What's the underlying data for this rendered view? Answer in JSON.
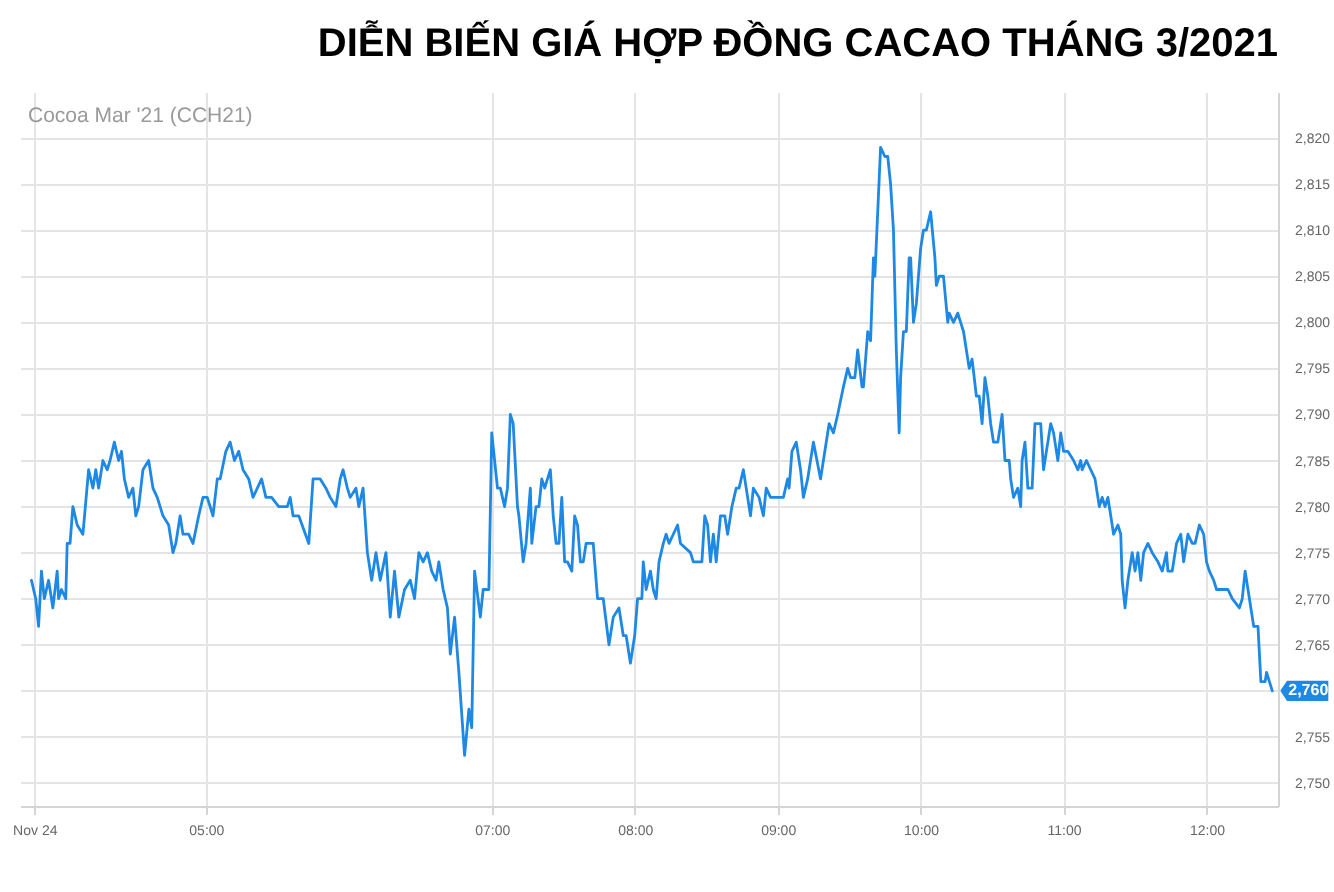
{
  "chart_data": {
    "type": "line",
    "title": "DIỄN BIẾN GIÁ HỢP ĐỒNG CACAO THÁNG 3/2021",
    "subtitle": "Cocoa Mar '21 (CCH21)",
    "color": "#1e88e5",
    "x": [
      3.78,
      3.81,
      3.83,
      3.85,
      3.87,
      3.9,
      3.93,
      3.96,
      3.97,
      3.99,
      4.02,
      4.03,
      4.05,
      4.07,
      4.1,
      4.14,
      4.18,
      4.21,
      4.23,
      4.25,
      4.28,
      4.31,
      4.33,
      4.36,
      4.39,
      4.41,
      4.43,
      4.46,
      4.49,
      4.51,
      4.53,
      4.56,
      4.6,
      4.63,
      4.66,
      4.7,
      4.74,
      4.77,
      4.79,
      4.82,
      4.84,
      4.88,
      4.91,
      4.95,
      4.98,
      5.01,
      5.05,
      5.08,
      5.1,
      5.14,
      5.17,
      5.2,
      5.23,
      5.26,
      5.3,
      5.33,
      5.39,
      5.42,
      5.46,
      5.51,
      5.57,
      5.59,
      5.61,
      5.65,
      5.72,
      5.75,
      5.8,
      5.84,
      5.87,
      5.91,
      5.94,
      5.96,
      5.99,
      6.01,
      6.05,
      6.07,
      6.1,
      6.13,
      6.16,
      6.19,
      6.22,
      6.26,
      6.29,
      6.32,
      6.35,
      6.39,
      6.43,
      6.46,
      6.49,
      6.52,
      6.55,
      6.58,
      6.61,
      6.63,
      6.66,
      6.69,
      6.71,
      6.74,
      6.77,
      6.81,
      6.84,
      6.86,
      6.88,
      6.92,
      6.94,
      6.98,
      7.0,
      7.02,
      7.04,
      7.06,
      7.09,
      7.11,
      7.13,
      7.15,
      7.18,
      7.19,
      7.22,
      7.24,
      7.27,
      7.28,
      7.31,
      7.33,
      7.35,
      7.37,
      7.39,
      7.41,
      7.43,
      7.45,
      7.47,
      7.49,
      7.51,
      7.53,
      7.56,
      7.58,
      7.6,
      7.62,
      7.64,
      7.66,
      7.71,
      7.72,
      7.74,
      7.78,
      7.82,
      7.85,
      7.89,
      7.92,
      7.94,
      7.97,
      8.0,
      8.02,
      8.05,
      8.06,
      8.08,
      8.11,
      8.13,
      8.15,
      8.17,
      8.2,
      8.22,
      8.24,
      8.27,
      8.3,
      8.32,
      8.39,
      8.41,
      8.47,
      8.49,
      8.51,
      8.53,
      8.55,
      8.57,
      8.6,
      8.63,
      8.65,
      8.68,
      8.71,
      8.73,
      8.76,
      8.79,
      8.81,
      8.83,
      8.87,
      8.9,
      8.92,
      8.95,
      9.01,
      9.04,
      9.07,
      9.08,
      9.1,
      9.13,
      9.16,
      9.18,
      9.21,
      9.25,
      9.3,
      9.33,
      9.36,
      9.39,
      9.42,
      9.46,
      9.49,
      9.51,
      9.54,
      9.56,
      9.59,
      9.6,
      9.63,
      9.65,
      9.67,
      9.68,
      9.72,
      9.75,
      9.77,
      9.79,
      9.81,
      9.83,
      9.85,
      9.86,
      9.88,
      9.9,
      9.92,
      9.93,
      9.95,
      9.97,
      10.0,
      10.02,
      10.04,
      10.07,
      10.1,
      10.11,
      10.13,
      10.16,
      10.19,
      10.2,
      10.23,
      10.26,
      10.28,
      10.3,
      10.32,
      10.34,
      10.36,
      10.39,
      10.41,
      10.43,
      10.45,
      10.47,
      10.49,
      10.51,
      10.54,
      10.57,
      10.59,
      10.62,
      10.63,
      10.65,
      10.68,
      10.7,
      10.71,
      10.73,
      10.75,
      10.78,
      10.8,
      10.84,
      10.86,
      10.88,
      10.89,
      10.91,
      10.93,
      10.96,
      10.98,
      11.0,
      11.03,
      11.07,
      11.1,
      11.12,
      11.13,
      11.16,
      11.19,
      11.22,
      11.23,
      11.25,
      11.27,
      11.29,
      11.31,
      11.33,
      11.35,
      11.38,
      11.4,
      11.41,
      11.43,
      11.45,
      11.48,
      11.5,
      11.52,
      11.54,
      11.56,
      11.59,
      11.62,
      11.66,
      11.69,
      11.72,
      11.73,
      11.76,
      11.79,
      11.82,
      11.84,
      11.87,
      11.9,
      11.92,
      11.95,
      11.98,
      12.0,
      12.02,
      12.05,
      12.07,
      12.15,
      12.18,
      12.23,
      12.25,
      12.27,
      12.29,
      12.32,
      12.33,
      12.36,
      12.38,
      12.41,
      12.42,
      12.44,
      12.46
    ],
    "values": [
      2772,
      2770,
      2767,
      2773,
      2770,
      2772,
      2769,
      2773,
      2770,
      2771,
      2770,
      2776,
      2776,
      2780,
      2778,
      2777,
      2784,
      2782,
      2784,
      2782,
      2785,
      2784,
      2785,
      2787,
      2785,
      2786,
      2783,
      2781,
      2782,
      2779,
      2780,
      2784,
      2785,
      2782,
      2781,
      2779,
      2778,
      2775,
      2776,
      2779,
      2777,
      2777,
      2776,
      2779,
      2781,
      2781,
      2779,
      2783,
      2783,
      2786,
      2787,
      2785,
      2786,
      2784,
      2783,
      2781,
      2783,
      2781,
      2781,
      2780,
      2780,
      2781,
      2779,
      2779,
      2776,
      2783,
      2783,
      2782,
      2781,
      2780,
      2783,
      2784,
      2782,
      2781,
      2782,
      2780,
      2782,
      2775,
      2772,
      2775,
      2772,
      2775,
      2768,
      2773,
      2768,
      2771,
      2772,
      2770,
      2775,
      2774,
      2775,
      2773,
      2772,
      2774,
      2771,
      2769,
      2764,
      2768,
      2762,
      2753,
      2758,
      2756,
      2773,
      2768,
      2771,
      2771,
      2788,
      2785,
      2782,
      2782,
      2780,
      2782,
      2790,
      2789,
      2780,
      2779,
      2774,
      2776,
      2782,
      2776,
      2780,
      2780,
      2783,
      2782,
      2783,
      2784,
      2779,
      2776,
      2776,
      2781,
      2774,
      2774,
      2773,
      2779,
      2778,
      2774,
      2774,
      2776,
      2776,
      2774,
      2770,
      2770,
      2765,
      2768,
      2769,
      2766,
      2766,
      2763,
      2766,
      2770,
      2770,
      2774,
      2771,
      2773,
      2771,
      2770,
      2774,
      2776,
      2777,
      2776,
      2777,
      2778,
      2776,
      2775,
      2774,
      2774,
      2779,
      2778,
      2774,
      2777,
      2774,
      2779,
      2779,
      2777,
      2780,
      2782,
      2782,
      2784,
      2781,
      2779,
      2782,
      2781,
      2779,
      2782,
      2781,
      2781,
      2781,
      2783,
      2782,
      2786,
      2787,
      2784,
      2781,
      2783,
      2787,
      2783,
      2786,
      2789,
      2788,
      2790,
      2793,
      2795,
      2794,
      2794,
      2797,
      2793,
      2793,
      2799,
      2798,
      2807,
      2805,
      2819,
      2818,
      2818,
      2815,
      2810,
      2797,
      2788,
      2794,
      2799,
      2799,
      2807,
      2807,
      2800,
      2802,
      2808,
      2810,
      2810,
      2812,
      2807,
      2804,
      2805,
      2805,
      2800,
      2801,
      2800,
      2801,
      2800,
      2799,
      2797,
      2795,
      2796,
      2792,
      2792,
      2789,
      2794,
      2792,
      2789,
      2787,
      2787,
      2790,
      2785,
      2785,
      2783,
      2781,
      2782,
      2780,
      2785,
      2787,
      2782,
      2782,
      2789,
      2789,
      2784,
      2786,
      2787,
      2789,
      2788,
      2785,
      2788,
      2786,
      2786,
      2785,
      2784,
      2785,
      2784,
      2785,
      2784,
      2783,
      2782,
      2780,
      2781,
      2780,
      2781,
      2779,
      2777,
      2778,
      2777,
      2772,
      2769,
      2772,
      2775,
      2773,
      2775,
      2772,
      2775,
      2776,
      2775,
      2774,
      2773,
      2775,
      2773,
      2773,
      2776,
      2777,
      2774,
      2777,
      2776,
      2776,
      2778,
      2777,
      2774,
      2773,
      2772,
      2771,
      2771,
      2770,
      2769,
      2770,
      2773,
      2771,
      2768,
      2767,
      2767,
      2761,
      2761,
      2762,
      2761,
      2760
    ],
    "xlim": [
      3.7,
      12.5
    ],
    "xticks": [
      {
        "value": 3.8,
        "label": "Nov 24"
      },
      {
        "value": 5,
        "label": "05:00"
      },
      {
        "value": 7,
        "label": "07:00"
      },
      {
        "value": 8,
        "label": "08:00"
      },
      {
        "value": 9,
        "label": "09:00"
      },
      {
        "value": 10,
        "label": "10:00"
      },
      {
        "value": 11,
        "label": "11:00"
      },
      {
        "value": 12,
        "label": "12:00"
      }
    ],
    "ylim": [
      2747.5,
      2825
    ],
    "yticks": [
      {
        "value": 2750,
        "label": "2,750"
      },
      {
        "value": 2755,
        "label": "2,755"
      },
      {
        "value": 2760,
        "label": null
      },
      {
        "value": 2765,
        "label": "2,765"
      },
      {
        "value": 2770,
        "label": "2,770"
      },
      {
        "value": 2775,
        "label": "2,775"
      },
      {
        "value": 2780,
        "label": "2,780"
      },
      {
        "value": 2785,
        "label": "2,785"
      },
      {
        "value": 2790,
        "label": "2,790"
      },
      {
        "value": 2795,
        "label": "2,795"
      },
      {
        "value": 2800,
        "label": "2,800"
      },
      {
        "value": 2805,
        "label": "2,805"
      },
      {
        "value": 2810,
        "label": "2,810"
      },
      {
        "value": 2815,
        "label": "2,815"
      },
      {
        "value": 2820,
        "label": "2,820"
      }
    ],
    "grid": true,
    "annotations": [
      {
        "text": "2,760",
        "x": 12.46,
        "y": 2760
      }
    ]
  }
}
